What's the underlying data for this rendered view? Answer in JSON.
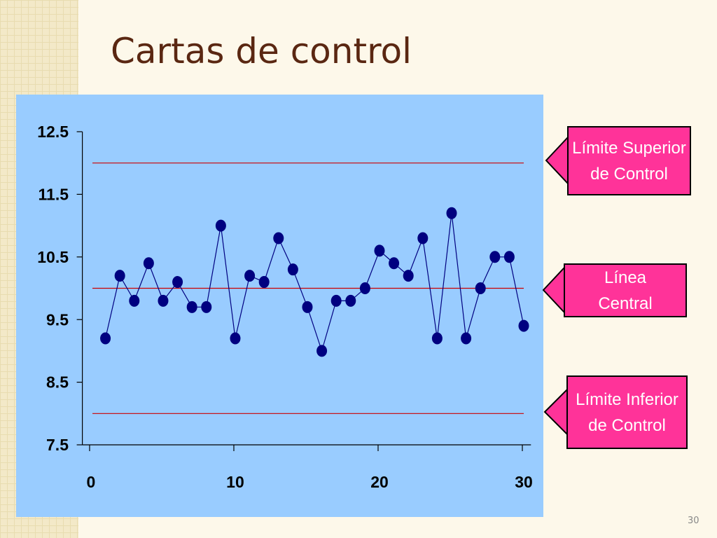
{
  "title": "Cartas de control",
  "page_number": "30",
  "callouts": [
    {
      "label": "Límite Superior de Control"
    },
    {
      "label": "Línea Central"
    },
    {
      "label": "Límite Inferior de Control"
    }
  ],
  "chart_data": {
    "type": "line",
    "x": [
      1,
      2,
      3,
      4,
      5,
      6,
      7,
      8,
      9,
      10,
      11,
      12,
      13,
      14,
      15,
      16,
      17,
      18,
      19,
      20,
      21,
      22,
      23,
      24,
      25,
      26,
      27,
      28,
      29,
      30
    ],
    "values": [
      9.2,
      10.2,
      9.8,
      10.4,
      9.8,
      10.1,
      9.7,
      9.7,
      11.0,
      9.2,
      10.2,
      10.1,
      10.8,
      10.3,
      9.7,
      9.0,
      9.8,
      9.8,
      10.0,
      10.6,
      10.4,
      10.2,
      10.8,
      9.2,
      11.2,
      9.2,
      10.0,
      10.5,
      10.5,
      9.4
    ],
    "color": "#000080",
    "reference_lines": [
      {
        "value": 12.0,
        "color": "#cc0000"
      },
      {
        "value": 10.0,
        "color": "#cc0000"
      },
      {
        "value": 8.0,
        "color": "#cc0000"
      }
    ],
    "xlim": [
      -0.6,
      30.5
    ],
    "xticks": [
      0,
      10,
      20,
      30
    ],
    "ylim": [
      7.5,
      12.5
    ],
    "yticks": [
      7.5,
      8.5,
      9.5,
      10.5,
      11.5,
      12.5
    ]
  }
}
